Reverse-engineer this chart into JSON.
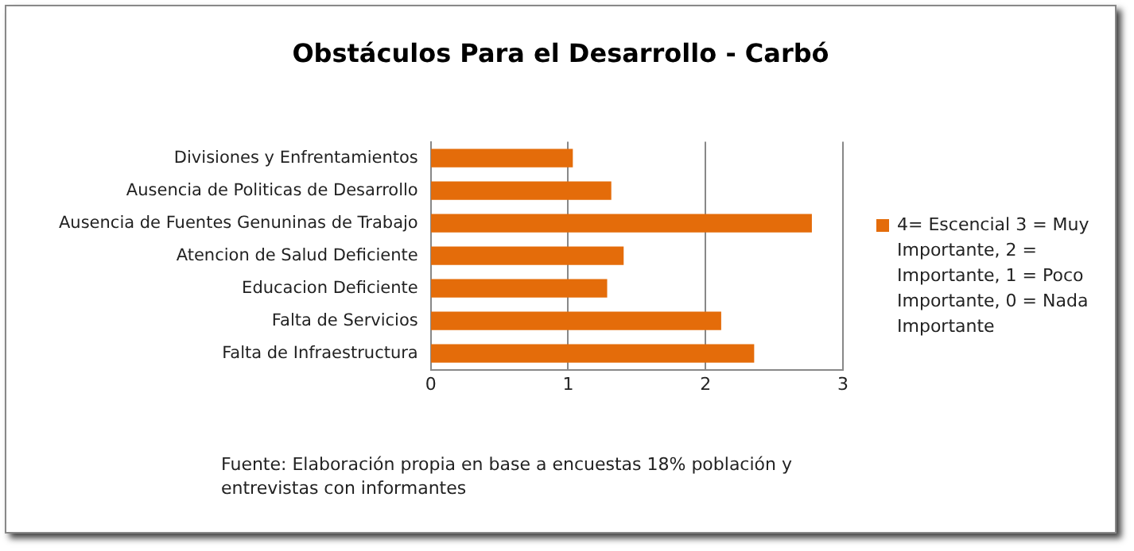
{
  "chart_data": {
    "type": "bar",
    "orientation": "horizontal",
    "title": "Obstáculos Para el Desarrollo - Carbó",
    "categories": [
      "Divisiones y Enfrentamientos",
      "Ausencia de Politicas de Desarrollo",
      "Ausencia de Fuentes Genuninas de Trabajo",
      "Atencion de Salud Deficiente",
      "Educacion Deficiente",
      "Falta de Servicios",
      "Falta de Infraestructura"
    ],
    "series": [
      {
        "name": "4= Escencial 3 = Muy Importante, 2 = Importante, 1 = Poco Importante, 0 = Nada Importante",
        "color": "#e46c0a",
        "values": [
          1.03,
          1.31,
          2.77,
          1.4,
          1.28,
          2.11,
          2.35
        ]
      }
    ],
    "xlim": [
      0,
      3
    ],
    "xticks": [
      0,
      1,
      2,
      3
    ],
    "grid": "x",
    "legend": "right",
    "annotations": [
      "Fuente: Elaboración propia en base a encuestas 18% población y entrevistas con informantes"
    ]
  }
}
